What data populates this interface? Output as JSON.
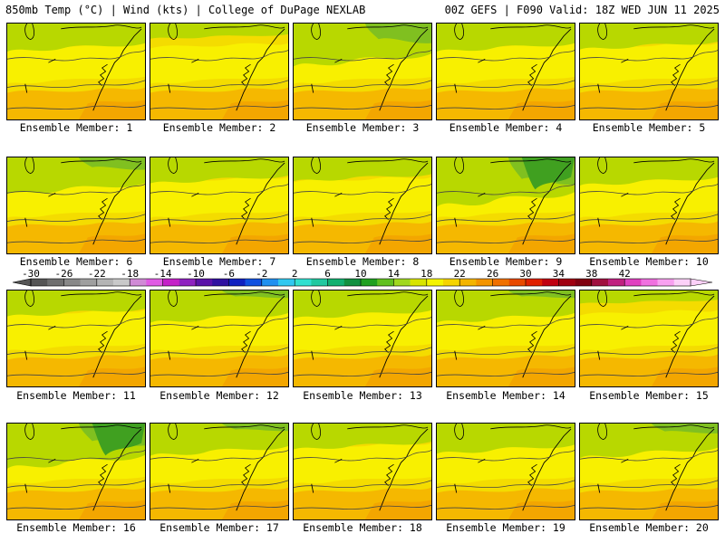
{
  "header": {
    "left_title": "850mb Temp (°C) | Wind (kts) | College of DuPage NEXLAB",
    "right_title": "00Z GEFS | F090 Valid: 18Z WED JUN 11 2025"
  },
  "label_prefix": "Ensemble Member: ",
  "members": [
    {
      "label": "Ensemble Member: 1",
      "green": 0.45
    },
    {
      "label": "Ensemble Member: 2",
      "green": 0.15
    },
    {
      "label": "Ensemble Member: 3",
      "green": 0.8
    },
    {
      "label": "Ensemble Member: 4",
      "green": 0.45
    },
    {
      "label": "Ensemble Member: 5",
      "green": 0.4
    },
    {
      "label": "Ensemble Member: 6",
      "green": 0.65
    },
    {
      "label": "Ensemble Member: 7",
      "green": 0.4
    },
    {
      "label": "Ensemble Member: 8",
      "green": 0.35
    },
    {
      "label": "Ensemble Member: 9",
      "green": 0.95
    },
    {
      "label": "Ensemble Member: 10",
      "green": 0.45
    },
    {
      "label": "Ensemble Member: 11",
      "green": 0.4
    },
    {
      "label": "Ensemble Member: 12",
      "green": 0.55
    },
    {
      "label": "Ensemble Member: 13",
      "green": 0.45
    },
    {
      "label": "Ensemble Member: 14",
      "green": 0.55
    },
    {
      "label": "Ensemble Member: 15",
      "green": 0.1
    },
    {
      "label": "Ensemble Member: 16",
      "green": 0.85
    },
    {
      "label": "Ensemble Member: 17",
      "green": 0.55
    },
    {
      "label": "Ensemble Member: 18",
      "green": 0.4
    },
    {
      "label": "Ensemble Member: 19",
      "green": 0.5
    },
    {
      "label": "Ensemble Member: 20",
      "green": 0.6
    }
  ],
  "colorbar": {
    "tick_labels": [
      "-30",
      "-26",
      "-22",
      "-18",
      "-14",
      "-10",
      "-6",
      "-2",
      "2",
      "6",
      "10",
      "14",
      "18",
      "22",
      "26",
      "30",
      "34",
      "38",
      "42"
    ],
    "colors": [
      "#555555",
      "#6f6f6f",
      "#888888",
      "#9f9f9f",
      "#b4b4b4",
      "#c9c9c9",
      "#d08ad6",
      "#e05ae4",
      "#c420c8",
      "#8e20c0",
      "#5a10a8",
      "#3010a0",
      "#1020c0",
      "#1050e0",
      "#2090f0",
      "#30c8f0",
      "#30e0d0",
      "#20c8a0",
      "#10b070",
      "#109040",
      "#20a020",
      "#60c020",
      "#a0d820",
      "#d8e400",
      "#f4f400",
      "#f6d400",
      "#f4b400",
      "#f49400",
      "#f07000",
      "#e84800",
      "#e02000",
      "#c00010",
      "#a00010",
      "#800010",
      "#a01040",
      "#c02080",
      "#e040c0",
      "#f070e0",
      "#f8a0f0",
      "#fcd0f8"
    ]
  }
}
